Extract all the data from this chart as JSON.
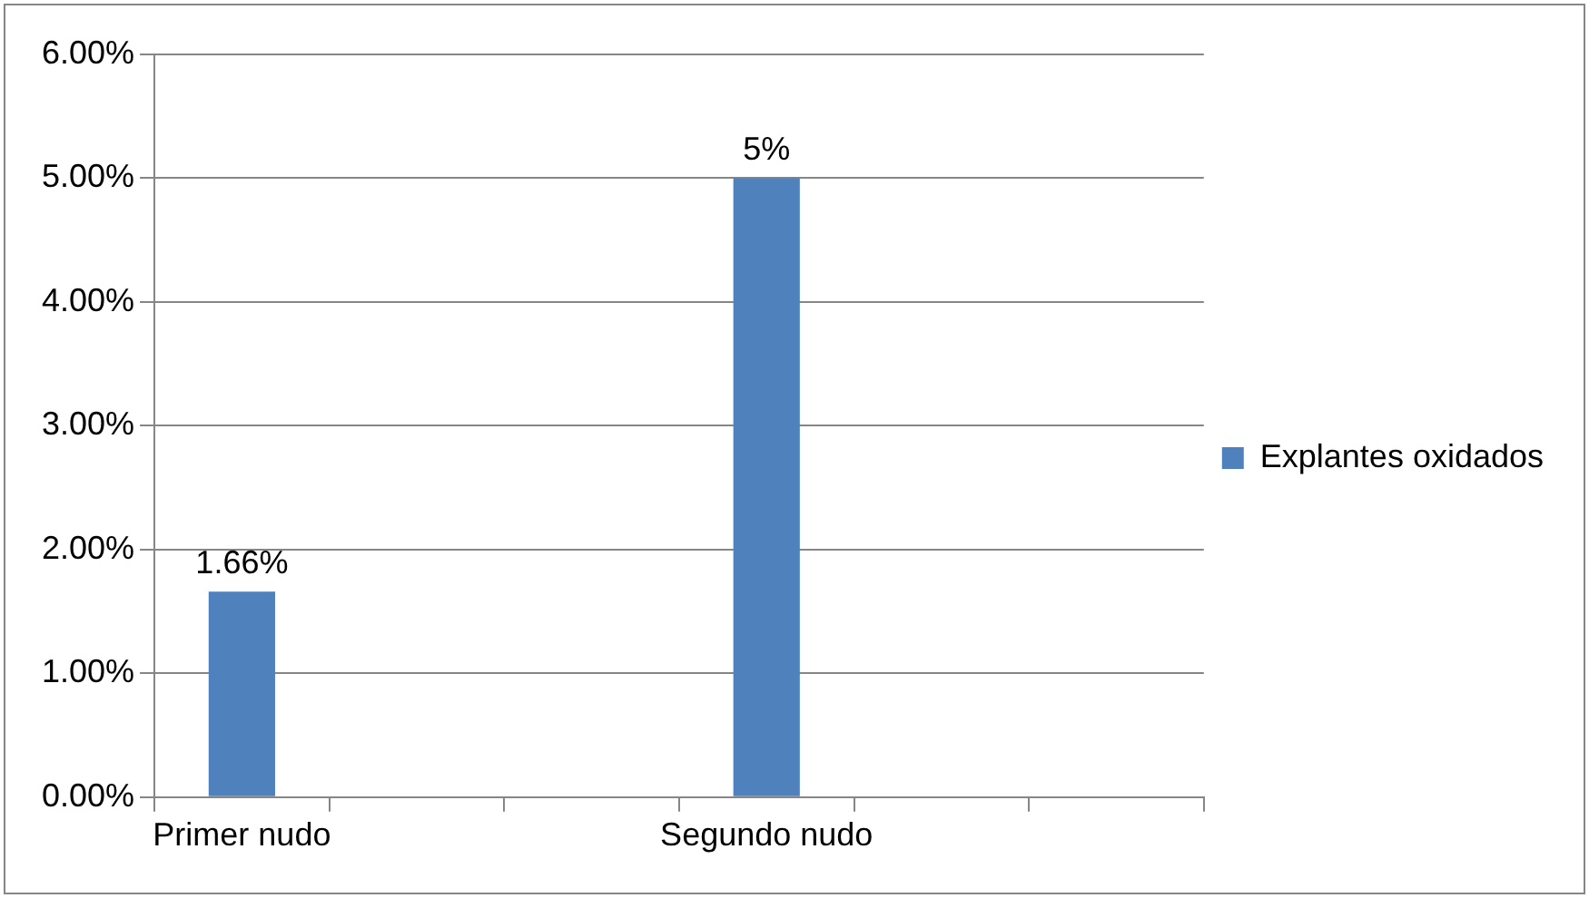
{
  "chart_data": {
    "type": "bar",
    "categories": [
      "Primer nudo",
      null,
      null,
      "Segundo nudo",
      null,
      null
    ],
    "series": [
      {
        "name": "Explantes oxidados",
        "color": "#4f81bd",
        "values": [
          1.66,
          null,
          null,
          5,
          null,
          null
        ],
        "value_labels": [
          "1.66%",
          null,
          null,
          "5%",
          null,
          null
        ]
      }
    ],
    "ylim": [
      0,
      6
    ],
    "yticks": [
      {
        "value": 0,
        "label": "0.00%"
      },
      {
        "value": 1,
        "label": "1.00%"
      },
      {
        "value": 2,
        "label": "2.00%"
      },
      {
        "value": 3,
        "label": "3.00%"
      },
      {
        "value": 4,
        "label": "4.00%"
      },
      {
        "value": 5,
        "label": "5.00%"
      },
      {
        "value": 6,
        "label": "6.00%"
      }
    ],
    "grid": "y",
    "legend": "right"
  }
}
